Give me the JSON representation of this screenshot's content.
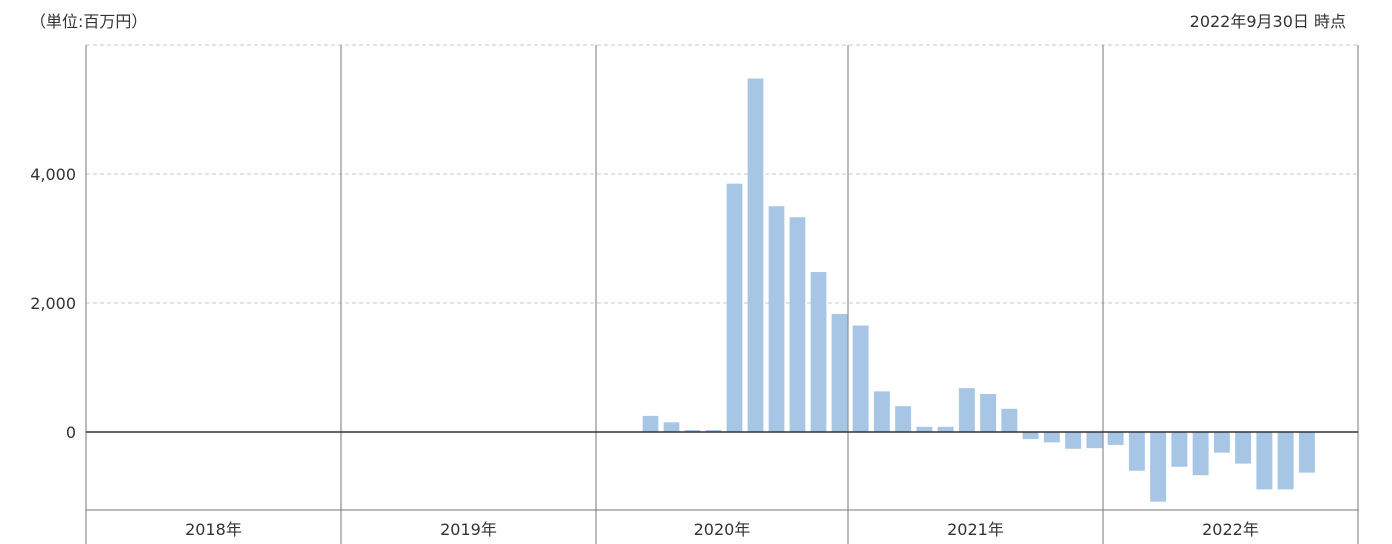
{
  "unit_label": "（単位:百万円）",
  "as_of_label": "2022年9月30日 時点",
  "colors": {
    "bar": "#a7c5e4",
    "zero_line": "#333333",
    "year_line": "#777777",
    "grid": "#c8c8c8"
  },
  "chart_data": {
    "type": "bar",
    "ylim": [
      -1200,
      6000
    ],
    "yticks": [
      {
        "value": 0,
        "label": "0"
      },
      {
        "value": 2000,
        "label": "2,000"
      },
      {
        "value": 4000,
        "label": "4,000"
      }
    ],
    "gridlines": [
      2000,
      4000,
      6000
    ],
    "years": [
      "2018年",
      "2019年",
      "2020年",
      "2021年",
      "2022年"
    ],
    "values": [
      null,
      null,
      null,
      null,
      null,
      null,
      null,
      null,
      null,
      null,
      null,
      null,
      null,
      null,
      null,
      null,
      null,
      null,
      null,
      null,
      null,
      null,
      null,
      null,
      null,
      null,
      250,
      150,
      30,
      30,
      3850,
      5480,
      3500,
      3330,
      2480,
      1830,
      1650,
      630,
      400,
      80,
      80,
      680,
      590,
      360,
      -110,
      -160,
      -260,
      -250,
      -200,
      -600,
      -1080,
      -540,
      -670,
      -320,
      -490,
      -890,
      -890,
      -630
    ]
  }
}
